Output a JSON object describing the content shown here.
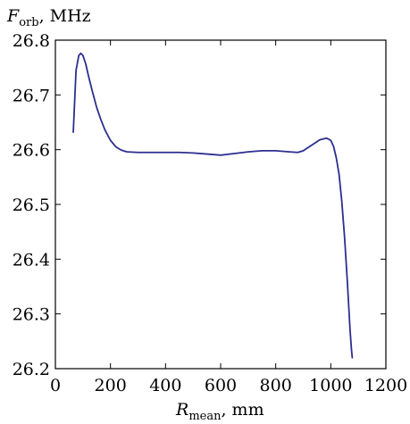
{
  "chart_data": {
    "type": "line",
    "ylabel": {
      "symbol": "F",
      "subscript": "orb",
      "unit": ", MHz"
    },
    "xlabel": {
      "symbol": "R",
      "subscript": "mean",
      "unit": ", mm"
    },
    "xlim": [
      0,
      1200
    ],
    "ylim": [
      26.2,
      26.8
    ],
    "xticks": [
      0,
      200,
      400,
      600,
      800,
      1000,
      1200
    ],
    "yticks": [
      26.2,
      26.3,
      26.4,
      26.5,
      26.6,
      26.7,
      26.8
    ],
    "xtick_labels": [
      "0",
      "200",
      "400",
      "600",
      "800",
      "1000",
      "1200"
    ],
    "ytick_labels": [
      "26.2",
      "26.3",
      "26.4",
      "26.5",
      "26.6",
      "26.7",
      "26.8"
    ],
    "grid": false,
    "line_color": "#2b2f8f",
    "series": [
      {
        "x": [
          65,
          75,
          85,
          92,
          100,
          110,
          120,
          135,
          150,
          165,
          180,
          200,
          220,
          240,
          260,
          300,
          350,
          400,
          450,
          500,
          550,
          600,
          650,
          700,
          750,
          800,
          850,
          880,
          900,
          930,
          960,
          985,
          1000,
          1010,
          1020,
          1030,
          1040,
          1050,
          1060,
          1070,
          1075,
          1078
        ],
        "y": [
          26.632,
          26.745,
          26.772,
          26.776,
          26.772,
          26.757,
          26.735,
          26.705,
          26.677,
          26.655,
          26.636,
          26.617,
          26.605,
          26.599,
          26.596,
          26.595,
          26.595,
          26.595,
          26.595,
          26.594,
          26.592,
          26.59,
          26.593,
          26.596,
          26.598,
          26.598,
          26.596,
          26.595,
          26.598,
          26.608,
          26.618,
          26.621,
          26.617,
          26.606,
          26.585,
          26.555,
          26.505,
          26.44,
          26.36,
          26.27,
          26.235,
          26.22
        ]
      }
    ]
  }
}
